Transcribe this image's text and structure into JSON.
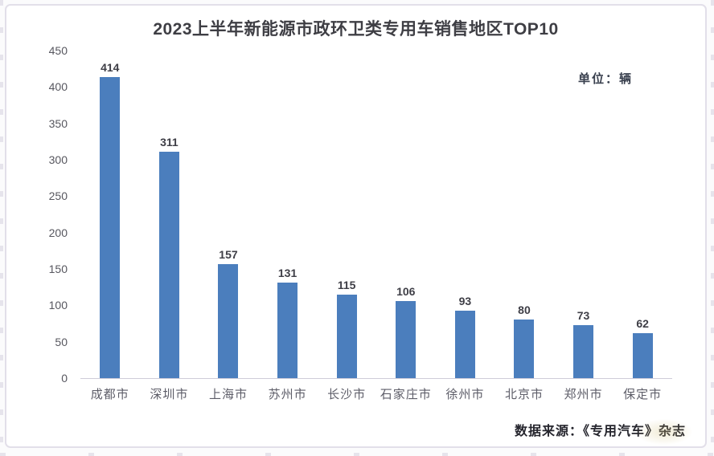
{
  "chart": {
    "title": "2023上半年新能源市政环卫类专用车销售地区TOP10",
    "unit_label": "单位：辆",
    "source": "数据来源：《专用汽车》杂志"
  },
  "chart_data": {
    "type": "bar",
    "title": "2023上半年新能源市政环卫类专用车销售地区TOP10",
    "unit": "单位：辆",
    "categories": [
      "成都市",
      "深圳市",
      "上海市",
      "苏州市",
      "长沙市",
      "石家庄市",
      "徐州市",
      "北京市",
      "郑州市",
      "保定市"
    ],
    "values": [
      414,
      311,
      157,
      131,
      115,
      106,
      93,
      80,
      73,
      62
    ],
    "xlabel": "",
    "ylabel": "",
    "ylim": [
      0,
      450
    ],
    "ytick_step": 50,
    "grid": false,
    "legend": false,
    "data_labels": true,
    "bar_color": "#4b7ebd",
    "source": "数据来源：《专用汽车》杂志"
  }
}
